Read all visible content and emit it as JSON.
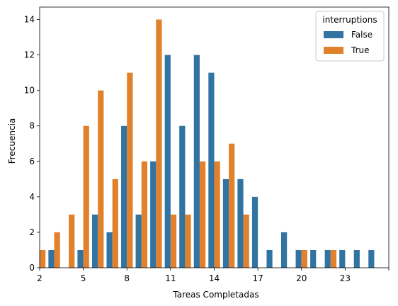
{
  "chart_data": {
    "type": "bar",
    "xlabel": "Tareas Completadas",
    "ylabel": "Frecuencia",
    "legend_title": "interruptions",
    "legend_position": "top-right",
    "grid": false,
    "x": [
      2,
      3,
      4,
      5,
      6,
      7,
      8,
      9,
      10,
      11,
      12,
      13,
      14,
      15,
      16,
      17,
      18,
      19,
      20,
      21,
      22,
      23,
      24,
      25
    ],
    "xticks": [
      2,
      5,
      8,
      11,
      14,
      17,
      20,
      23,
      26
    ],
    "xtick_labels": [
      "2",
      "5",
      "8",
      "11",
      "14",
      "17",
      "20",
      "23",
      ""
    ],
    "yticks": [
      0,
      2,
      4,
      6,
      8,
      10,
      12,
      14
    ],
    "xlim": [
      2,
      26
    ],
    "ylim": [
      0,
      14.7
    ],
    "series": [
      {
        "name": "False",
        "color": "#3274a1",
        "values": [
          0,
          1,
          0,
          1,
          3,
          2,
          8,
          3,
          6,
          12,
          8,
          12,
          11,
          5,
          5,
          4,
          1,
          2,
          1,
          1,
          1,
          1,
          1,
          1
        ]
      },
      {
        "name": "True",
        "color": "#e1812c",
        "values": [
          1,
          2,
          3,
          8,
          10,
          5,
          11,
          6,
          14,
          3,
          3,
          6,
          6,
          7,
          3,
          0,
          0,
          0,
          1,
          0,
          1,
          0,
          0,
          0
        ]
      }
    ]
  }
}
